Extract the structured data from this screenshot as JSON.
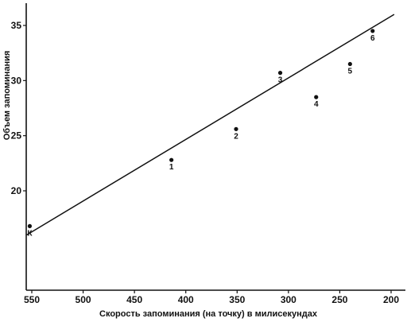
{
  "chart_data": {
    "type": "scatter",
    "title": "",
    "xlabel": "Скорость запоминания (на точку) в милисекундах",
    "ylabel": "Объем запоминания",
    "x_reversed": true,
    "xlim": [
      555,
      195
    ],
    "ylim": [
      10,
      37
    ],
    "x_ticks": [
      550,
      500,
      450,
      400,
      350,
      300,
      250,
      200
    ],
    "y_ticks": [
      20,
      25,
      30,
      35
    ],
    "grid": false,
    "legend": "none",
    "points": [
      {
        "label": "К",
        "x": 552,
        "y": 16.8
      },
      {
        "label": "1",
        "x": 414,
        "y": 22.8
      },
      {
        "label": "2",
        "x": 351,
        "y": 25.6
      },
      {
        "label": "3",
        "x": 308,
        "y": 30.7
      },
      {
        "label": "4",
        "x": 273,
        "y": 28.5
      },
      {
        "label": "5",
        "x": 240,
        "y": 31.5
      },
      {
        "label": "6",
        "x": 218,
        "y": 34.5
      }
    ],
    "fit_line": {
      "x1": 555,
      "y1": 16.0,
      "x2": 197,
      "y2": 36.0
    },
    "colors": {
      "ink": "#111111",
      "background": "#ffffff"
    }
  }
}
